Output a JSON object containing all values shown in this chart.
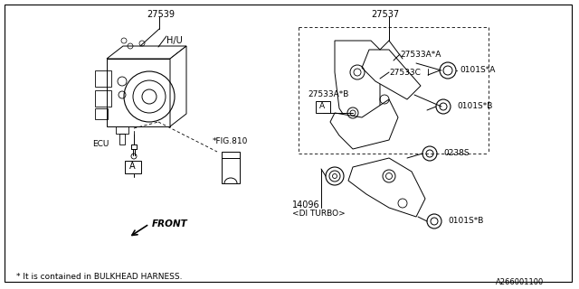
{
  "bg_color": "#ffffff",
  "line_color": "#000000",
  "text_color": "#000000",
  "outer_border": [
    5,
    5,
    632,
    312
  ],
  "footnote": "* It is contained in BULKHEAD HARNESS.",
  "partnum": "A266001100"
}
